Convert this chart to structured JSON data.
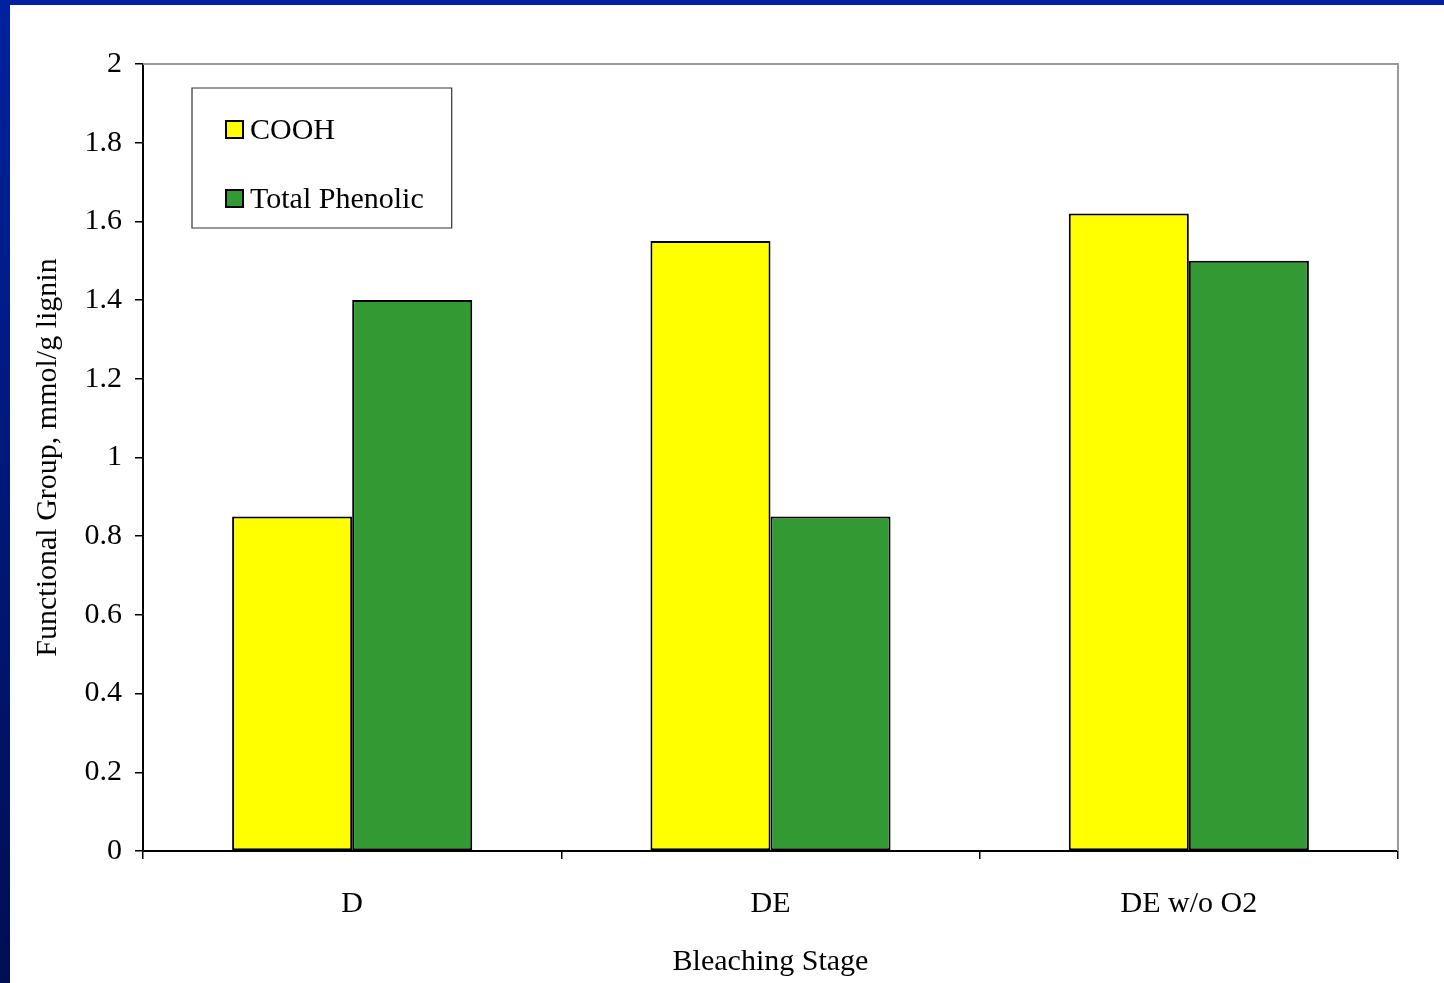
{
  "chart_data": {
    "type": "bar",
    "xlabel": "Bleaching Stage",
    "ylabel": "Functional Group, mmol/g lignin",
    "categories": [
      "D",
      "DE",
      "DE w/o O2"
    ],
    "series": [
      {
        "name": "COOH",
        "color": "#ffff00",
        "values": [
          0.85,
          1.55,
          1.62
        ]
      },
      {
        "name": "Total Phenolic",
        "color": "#339933",
        "values": [
          1.4,
          0.85,
          1.5
        ]
      }
    ],
    "ylim": [
      0,
      2
    ],
    "yticks": [
      0,
      0.2,
      0.4,
      0.6,
      0.8,
      1,
      1.2,
      1.4,
      1.6,
      1.8,
      2
    ],
    "legend": "top left"
  }
}
